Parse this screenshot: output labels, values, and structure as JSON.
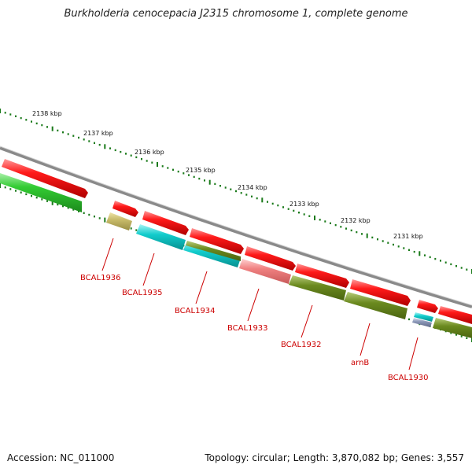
{
  "title": "Burkholderia cenocepacia J2315 chromosome 1, complete genome",
  "footer": {
    "accession": "Accession: NC_011000",
    "summary": "Topology: circular; Length: 3,870,082 bp; Genes: 3,557"
  },
  "kbp_ticks": [
    "2138 kbp",
    "2137 kbp",
    "2136 kbp",
    "2135 kbp",
    "2134 kbp",
    "2133 kbp",
    "2132 kbp",
    "2131 kbp"
  ],
  "gene_labels": [
    "BCAL1936",
    "BCAL1935",
    "BCAL1934",
    "BCAL1933",
    "BCAL1932",
    "arnB",
    "BCAL1930"
  ],
  "colors": {
    "forward_cds": "#ee1111",
    "reverse_cds_green": "#33cc33",
    "khaki": "#c8bb6a",
    "cyan": "#11cccc",
    "olive": "#6b8a1f",
    "salmon": "#f08080",
    "slate": "#8c98b8",
    "backbone": "#8a8a8a",
    "tick_green": "#1a7a1a",
    "label_red": "#cc0000"
  }
}
